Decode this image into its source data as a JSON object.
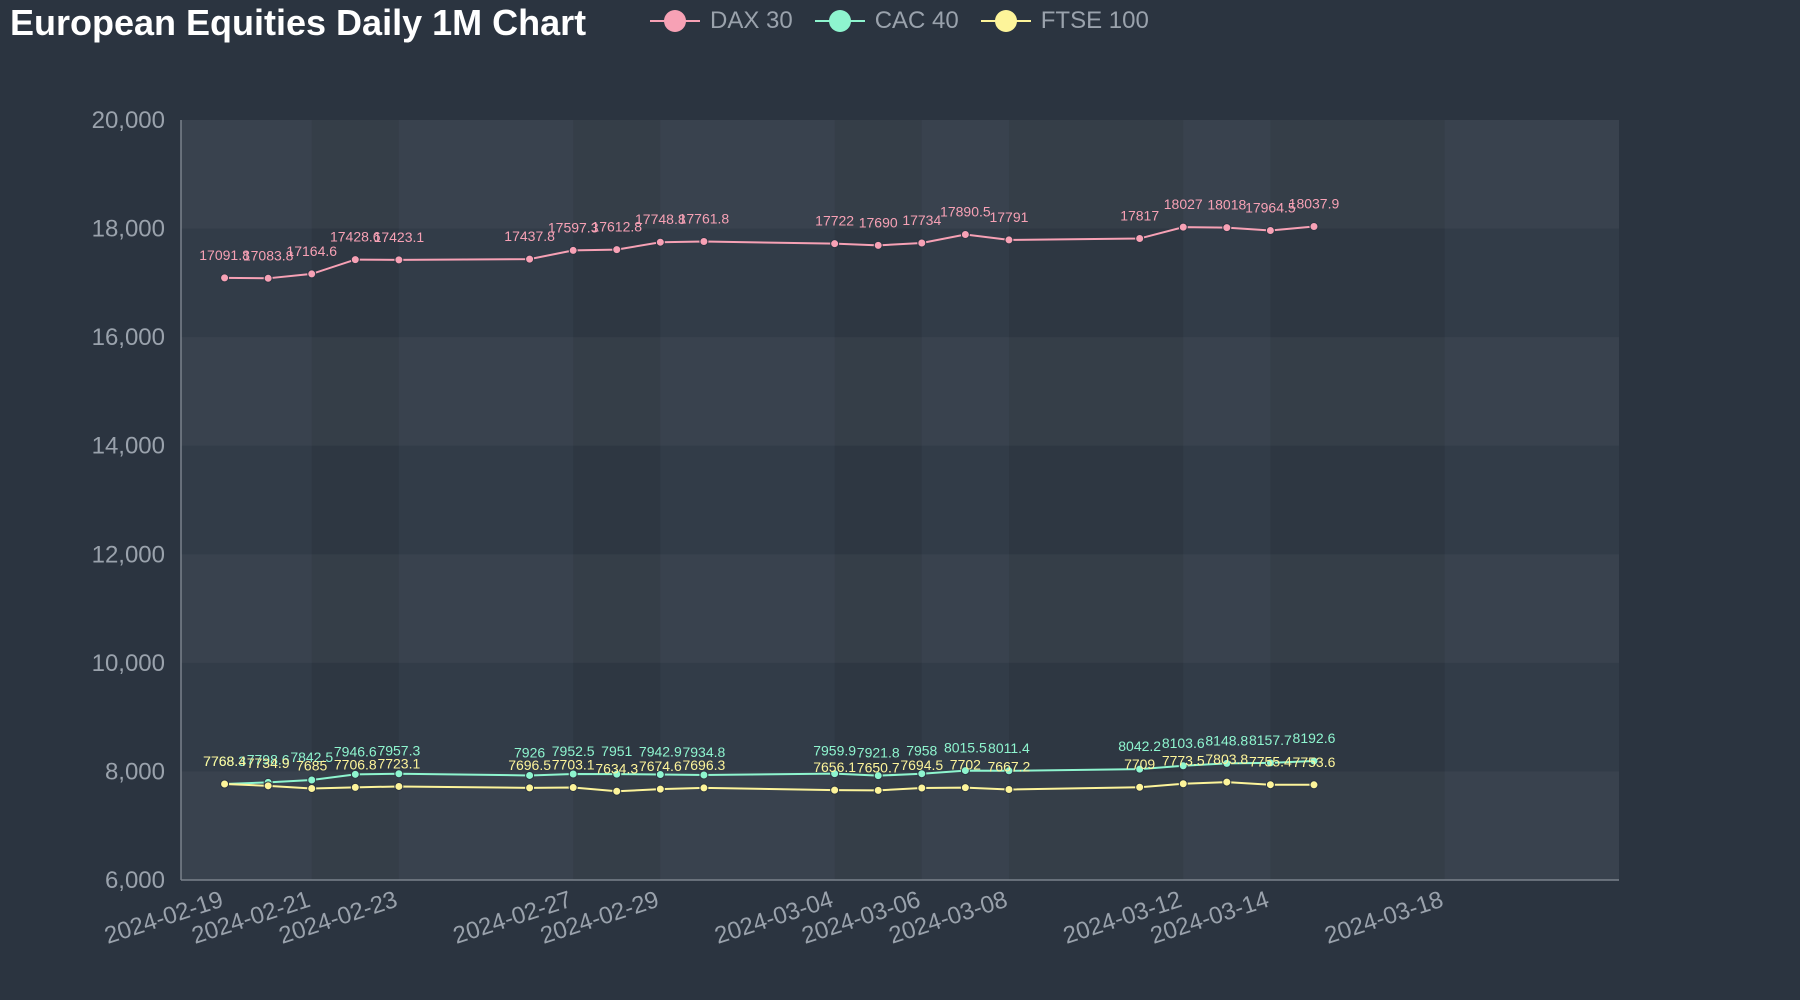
{
  "chart_data": {
    "type": "line",
    "title": "European Equities Daily 1M Chart",
    "xlabel": "",
    "ylabel": "",
    "ylim": [
      6000,
      20000
    ],
    "y_ticks": [
      "6,000",
      "8,000",
      "10,000",
      "12,000",
      "14,000",
      "16,000",
      "18,000",
      "20,000"
    ],
    "x_ticks": [
      "2024-02-19",
      "2024-02-21",
      "2024-02-23",
      "2024-02-27",
      "2024-02-29",
      "2024-03-04",
      "2024-03-06",
      "2024-03-08",
      "2024-03-12",
      "2024-03-14",
      "2024-03-18"
    ],
    "legend": "top",
    "grid": true,
    "x": [
      "2024-02-19",
      "2024-02-20",
      "2024-02-21",
      "2024-02-22",
      "2024-02-23",
      "2024-02-26",
      "2024-02-27",
      "2024-02-28",
      "2024-02-29",
      "2024-03-01",
      "2024-03-04",
      "2024-03-05",
      "2024-03-06",
      "2024-03-07",
      "2024-03-08",
      "2024-03-11",
      "2024-03-12",
      "2024-03-13",
      "2024-03-14",
      "2024-03-15"
    ],
    "series": [
      {
        "name": "DAX 30",
        "color": "#f7a1b5",
        "values": [
          17091.8,
          17083.8,
          17164.6,
          17428.6,
          17423.1,
          17437.8,
          17597.3,
          17612.8,
          17748.8,
          17761.8,
          17722,
          17690,
          17734,
          17890.5,
          17791,
          17817,
          18027,
          18018,
          17964.5,
          18037.9
        ]
      },
      {
        "name": "CAC 40",
        "color": "#8ef5cf",
        "values": [
          7768.3,
          7798.6,
          7842.5,
          7946.6,
          7957.3,
          7926,
          7952.5,
          7951,
          7942.9,
          7934.8,
          7959.9,
          7921.8,
          7958,
          8015.5,
          8011.4,
          8042.2,
          8103.6,
          8148.8,
          8157.7,
          8192.6
        ]
      },
      {
        "name": "FTSE 100",
        "color": "#fdf49a",
        "values": [
          7768.4,
          7734.9,
          7685,
          7706.8,
          7723.1,
          7696.5,
          7703.1,
          7634.3,
          7674.6,
          7696.3,
          7656.1,
          7650.7,
          7694.5,
          7702,
          7667.2,
          7709,
          7773.5,
          7803.8,
          7755.4,
          7753.6
        ]
      }
    ]
  }
}
